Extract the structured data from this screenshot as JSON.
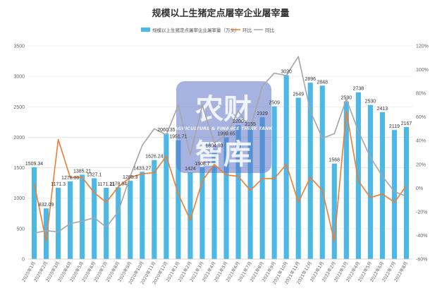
{
  "chart_data": {
    "type": "bar",
    "title": "规模以上生猪定点屠宰企业屠宰量",
    "legend": {
      "bar": "规模以上生猪定点屠宰企业屠宰量（万头）",
      "line1": "环比",
      "line2": "同比"
    },
    "categories": [
      "2020年1月",
      "2020年2月",
      "2020年3月",
      "2020年4月",
      "2020年5月",
      "2020年6月",
      "2020年7月",
      "2020年8月",
      "2020年9月",
      "2020年10月",
      "2020年11月",
      "2020年12月",
      "2021年1月",
      "2021年2月",
      "2021年3月",
      "2021年4月",
      "2021年5月",
      "2021年6月",
      "2021年7月",
      "2021年8月",
      "2021年9月",
      "2021年10月",
      "2021年11月",
      "2021年12月",
      "2022年1月",
      "2022年2月",
      "2022年3月",
      "2022年4月",
      "2022年5月",
      "2022年6月",
      "2022年7月",
      "2022年8月"
    ],
    "bar_labels": [
      "1509.34",
      "832.09",
      "1171.3",
      "1276.00",
      "1385.21",
      "1327.1",
      "1171.21",
      "1178.94",
      "1285.3",
      "1433.27",
      "1626.24",
      "2060.35",
      "1951.71",
      "1424",
      "1508.7",
      "1804.93",
      "1999.65",
      "2200",
      "2155",
      "2329",
      "2509",
      "3020",
      "2649",
      "2896",
      "2848",
      "1568",
      "2590",
      "2738",
      "2530",
      "2413",
      "2119",
      "2167"
    ],
    "series": [
      {
        "name": "规模以上生猪定点屠宰企业屠宰量（万头）",
        "type": "bar",
        "color": "#4db8e6",
        "values": [
          1509.34,
          832.09,
          1171.3,
          1276.0,
          1385.21,
          1327.1,
          1171.21,
          1178.94,
          1285.3,
          1433.27,
          1626.24,
          2060.35,
          1951.71,
          1424,
          1508.7,
          1804.93,
          1999.65,
          2200,
          2155,
          2329,
          2509,
          3020,
          2649,
          2896,
          2848,
          1568,
          2590,
          2738,
          2530,
          2413,
          2119,
          2167
        ]
      },
      {
        "name": "环比",
        "type": "line",
        "axis": "right",
        "color": "#ed7d31",
        "values": [
          4,
          -45,
          41,
          9,
          9,
          -4,
          -12,
          1,
          9,
          12,
          13,
          27,
          -5,
          -27,
          6,
          20,
          11,
          10,
          -2,
          8,
          8,
          20,
          -12,
          9,
          -2,
          -45,
          65,
          6,
          -8,
          -5,
          -12,
          2
        ]
      },
      {
        "name": "同比",
        "type": "line",
        "axis": "right",
        "color": "#a5a5a5",
        "values": [
          -38,
          -36,
          -37,
          -30,
          -28,
          -25,
          -33,
          -20,
          10,
          36,
          50,
          45,
          70,
          28,
          70,
          38,
          45,
          65,
          50,
          86,
          97,
          95,
          111,
          65,
          42,
          46,
          75,
          48,
          26,
          10,
          -3,
          -7
        ]
      }
    ],
    "ylim_left": [
      0,
      3500
    ],
    "yticks_left": [
      "0",
      "500",
      "1000",
      "1500",
      "2000",
      "2500",
      "3000",
      "3500"
    ],
    "ylim_right": [
      -60,
      120
    ],
    "yticks_right": [
      "-60%",
      "-40%",
      "-20%",
      "0%",
      "20%",
      "40%",
      "60%",
      "80%",
      "100%",
      "120%"
    ],
    "grid": true,
    "legend_position": "top"
  },
  "watermark": {
    "big": "农财",
    "big2": "智库",
    "small": "AGRICULTURE & FINANCE THINK TANK"
  }
}
